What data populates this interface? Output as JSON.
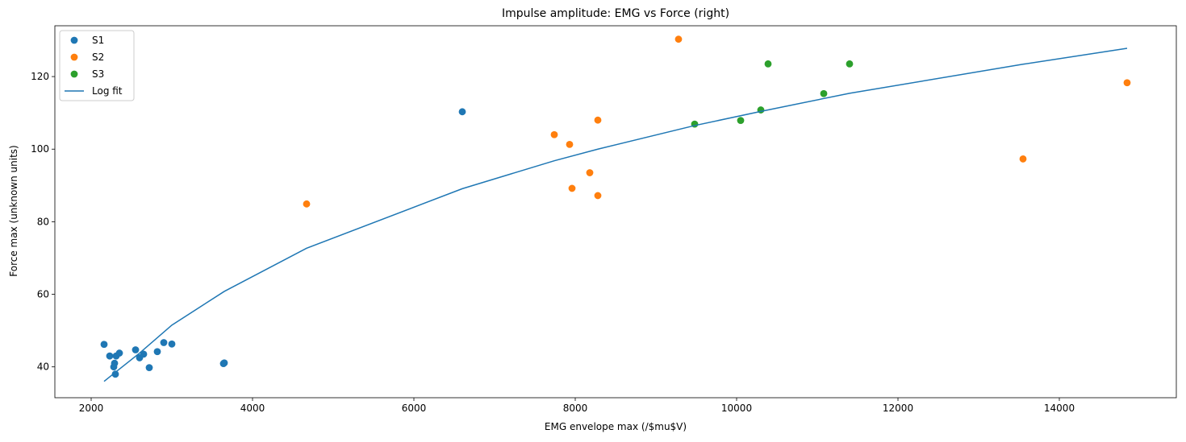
{
  "chart_data": {
    "type": "scatter",
    "title": "Impulse amplitude: EMG vs Force (right)",
    "xlabel": "EMG envelope max (/$mu$V)",
    "ylabel": "Force max (unknown units)",
    "xlim": [
      1550,
      15450
    ],
    "ylim": [
      31.5,
      134
    ],
    "xticks": [
      2000,
      4000,
      6000,
      8000,
      10000,
      12000,
      14000
    ],
    "yticks": [
      40,
      60,
      80,
      100,
      120
    ],
    "grid": false,
    "legend_position": "top-left",
    "series": [
      {
        "name": "S1",
        "kind": "scatter",
        "color": "#1f77b4",
        "points": [
          [
            2160,
            46.2
          ],
          [
            2230,
            43.0
          ],
          [
            2280,
            40.0
          ],
          [
            2290,
            41.0
          ],
          [
            2300,
            38.0
          ],
          [
            2310,
            43.0
          ],
          [
            2350,
            43.8
          ],
          [
            2550,
            44.7
          ],
          [
            2600,
            42.5
          ],
          [
            2650,
            43.5
          ],
          [
            2720,
            39.8
          ],
          [
            2820,
            44.2
          ],
          [
            2900,
            46.7
          ],
          [
            3000,
            46.3
          ],
          [
            3640,
            40.9
          ],
          [
            3650,
            41.1
          ],
          [
            6600,
            110.3
          ]
        ]
      },
      {
        "name": "S2",
        "kind": "scatter",
        "color": "#ff7f0e",
        "points": [
          [
            4670,
            84.9
          ],
          [
            7740,
            104.0
          ],
          [
            7930,
            101.3
          ],
          [
            7960,
            89.2
          ],
          [
            8180,
            93.5
          ],
          [
            8280,
            108.0
          ],
          [
            8280,
            87.2
          ],
          [
            9280,
            130.3
          ],
          [
            13550,
            97.3
          ],
          [
            14840,
            118.3
          ]
        ]
      },
      {
        "name": "S3",
        "kind": "scatter",
        "color": "#2ca02c",
        "points": [
          [
            9480,
            106.9
          ],
          [
            10050,
            107.9
          ],
          [
            10300,
            110.8
          ],
          [
            10390,
            123.5
          ],
          [
            11080,
            115.3
          ],
          [
            11400,
            123.5
          ]
        ]
      },
      {
        "name": "Log fit",
        "kind": "line",
        "color": "#1f77b4",
        "points": [
          [
            2160,
            36.0
          ],
          [
            2300,
            38.5
          ],
          [
            2600,
            43.8
          ],
          [
            3000,
            51.5
          ],
          [
            3650,
            60.8
          ],
          [
            4670,
            72.7
          ],
          [
            6600,
            89.1
          ],
          [
            7740,
            96.8
          ],
          [
            8280,
            100.0
          ],
          [
            9480,
            106.5
          ],
          [
            10300,
            110.4
          ],
          [
            11400,
            115.4
          ],
          [
            13550,
            123.4
          ],
          [
            14840,
            127.8
          ]
        ]
      }
    ]
  }
}
